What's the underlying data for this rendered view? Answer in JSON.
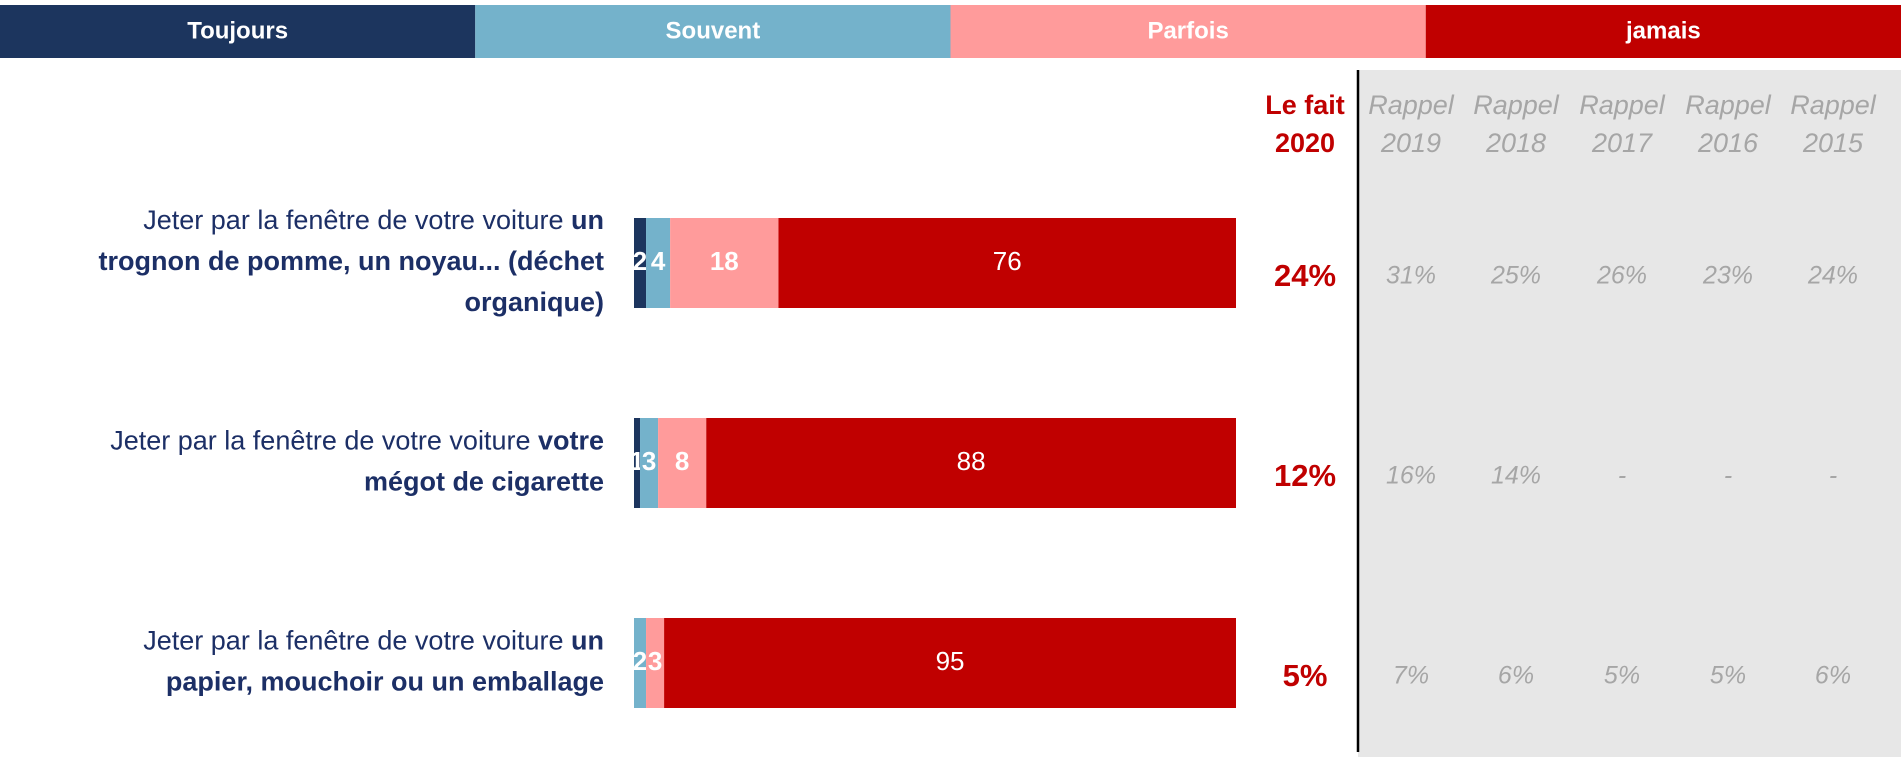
{
  "chart_data": {
    "type": "stacked_bar_horizontal",
    "categories": [
      [
        "Jeter par la fenêtre de votre voiture ",
        "un trognon de pomme, un noyau... (déchet organique)"
      ],
      [
        "Jeter par la fenêtre de votre voiture ",
        "votre mégot de cigarette"
      ],
      [
        "Jeter par la fenêtre de votre voiture ",
        "un papier, mouchoir ou un emballage"
      ]
    ],
    "series": [
      {
        "name": "Toujours",
        "color": "#1c355e",
        "values": [
          2,
          1,
          0
        ]
      },
      {
        "name": "Souvent",
        "color": "#74b2cb",
        "values": [
          4,
          3,
          2
        ]
      },
      {
        "name": "Parfois",
        "color": "#ff9b9b",
        "values": [
          18,
          8,
          3
        ]
      },
      {
        "name": "jamais",
        "color": "#c00000",
        "values": [
          76,
          88,
          95
        ]
      }
    ],
    "xlim": [
      0,
      100
    ],
    "table": {
      "columns": [
        {
          "title": [
            "Le fait",
            "2020"
          ],
          "values": [
            "24%",
            "12%",
            "5%"
          ]
        },
        {
          "title": [
            "Rappel",
            "2019"
          ],
          "values": [
            "31%",
            "16%",
            "7%"
          ]
        },
        {
          "title": [
            "Rappel",
            "2018"
          ],
          "values": [
            "25%",
            "14%",
            "6%"
          ]
        },
        {
          "title": [
            "Rappel",
            "2017"
          ],
          "values": [
            "26%",
            "-",
            "5%"
          ]
        },
        {
          "title": [
            "Rappel",
            "2016"
          ],
          "values": [
            "23%",
            "-",
            "5%"
          ]
        },
        {
          "title": [
            "Rappel",
            "2015"
          ],
          "values": [
            "24%",
            "-",
            "6%"
          ]
        }
      ]
    }
  }
}
